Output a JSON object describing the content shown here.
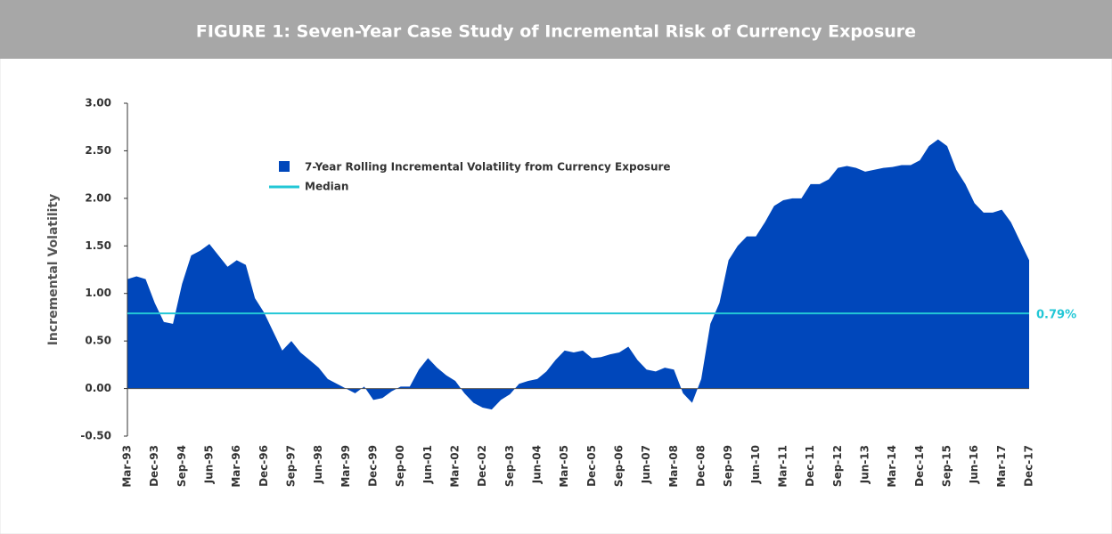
{
  "chart_data": {
    "type": "area",
    "title": "FIGURE 1: Seven-Year Case Study of Incremental Risk of Currency Exposure",
    "y_label": "Incremental Volatility",
    "categories": [
      "Mar-93",
      null,
      null,
      "Dec-93",
      null,
      null,
      "Sep-94",
      null,
      null,
      "Jun-95",
      null,
      null,
      "Mar-96",
      null,
      null,
      "Dec-96",
      null,
      null,
      "Sep-97",
      null,
      null,
      "Jun-98",
      null,
      null,
      "Mar-99",
      null,
      null,
      "Dec-99",
      null,
      null,
      "Sep-00",
      null,
      null,
      "Jun-01",
      null,
      null,
      "Mar-02",
      null,
      null,
      "Dec-02",
      null,
      null,
      "Sep-03",
      null,
      null,
      "Jun-04",
      null,
      null,
      "Mar-05",
      null,
      null,
      "Dec-05",
      null,
      null,
      "Sep-06",
      null,
      null,
      "Jun-07",
      null,
      null,
      "Mar-08",
      null,
      null,
      "Dec-08",
      null,
      null,
      "Sep-09",
      null,
      null,
      "Jun-10",
      null,
      null,
      "Mar-11",
      null,
      null,
      "Dec-11",
      null,
      null,
      "Sep-12",
      null,
      null,
      "Jun-13",
      null,
      null,
      "Mar-14",
      null,
      null,
      "Dec-14",
      null,
      null,
      "Sep-15",
      null,
      null,
      "Jun-16",
      null,
      null,
      "Mar-17",
      null,
      null,
      "Dec-17"
    ],
    "series": [
      {
        "name": "7-Year Rolling Incremental Volatility from Currency Exposure",
        "color": "#0047bb",
        "values": [
          1.15,
          1.18,
          1.15,
          0.9,
          0.7,
          0.68,
          1.1,
          1.4,
          1.45,
          1.52,
          1.4,
          1.28,
          1.35,
          1.3,
          0.95,
          0.8,
          0.6,
          0.4,
          0.5,
          0.38,
          0.3,
          0.22,
          0.1,
          0.05,
          0.0,
          -0.05,
          0.02,
          -0.12,
          -0.1,
          -0.03,
          0.02,
          0.02,
          0.2,
          0.32,
          0.22,
          0.14,
          0.08,
          -0.05,
          -0.15,
          -0.2,
          -0.22,
          -0.12,
          -0.06,
          0.05,
          0.08,
          0.1,
          0.18,
          0.3,
          0.4,
          0.38,
          0.4,
          0.32,
          0.33,
          0.36,
          0.38,
          0.44,
          0.3,
          0.2,
          0.18,
          0.22,
          0.2,
          -0.05,
          -0.15,
          0.1,
          0.68,
          0.9,
          1.35,
          1.5,
          1.6,
          1.6,
          1.75,
          1.92,
          1.98,
          2.0,
          2.0,
          2.15,
          2.15,
          2.2,
          2.32,
          2.34,
          2.32,
          2.28,
          2.3,
          2.32,
          2.33,
          2.35,
          2.35,
          2.4,
          2.55,
          2.62,
          2.55,
          2.3,
          2.15,
          1.95,
          1.85,
          1.85,
          1.88,
          1.75,
          1.55,
          1.35
        ]
      }
    ],
    "median": {
      "name": "Median",
      "value": 0.79,
      "label": "0.79%",
      "color": "#22c7d6"
    },
    "ylim": [
      -0.5,
      3.0
    ],
    "yticks": [
      {
        "value": -0.5,
        "label": "-0.50"
      },
      {
        "value": 0,
        "label": "0.00"
      },
      {
        "value": 0.5,
        "label": "0.50"
      },
      {
        "value": 1,
        "label": "1.00"
      },
      {
        "value": 1.5,
        "label": "1.50"
      },
      {
        "value": 2,
        "label": "2.00"
      },
      {
        "value": 2.5,
        "label": "2.50"
      },
      {
        "value": 3,
        "label": "3.00"
      }
    ]
  }
}
